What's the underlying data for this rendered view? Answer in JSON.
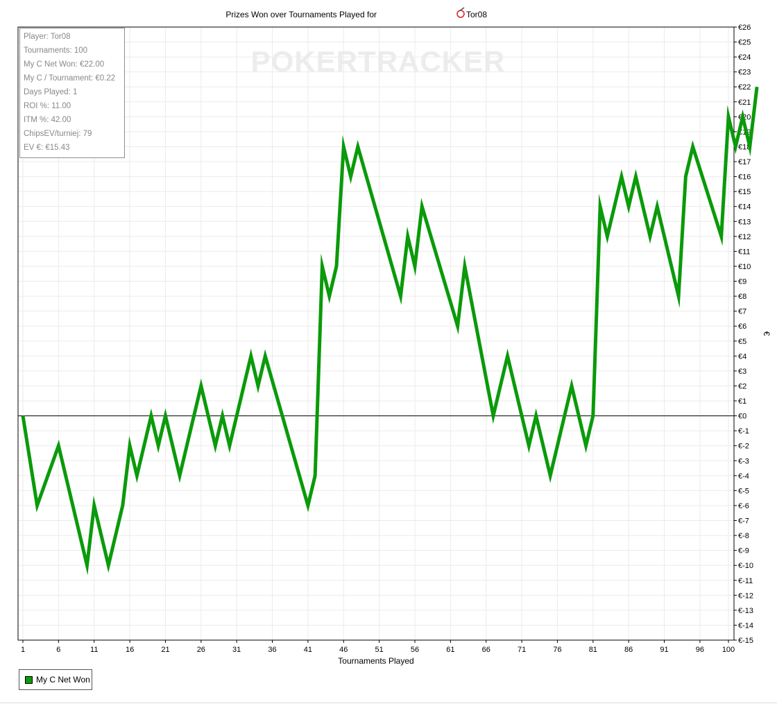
{
  "chart_data": {
    "type": "line",
    "title": "Prizes Won over Tournaments Played for",
    "player": "Tor08",
    "xlabel": "Tournaments Played",
    "ylabel": "€",
    "watermark": "POKERTRACKER",
    "x_ticks": [
      1,
      6,
      11,
      16,
      21,
      26,
      31,
      36,
      41,
      46,
      51,
      56,
      61,
      66,
      71,
      76,
      81,
      86,
      91,
      96,
      100
    ],
    "xlim": [
      0,
      100
    ],
    "ylim": [
      -15,
      26
    ],
    "y_tick_prefix": "€",
    "grid": true,
    "legend_position": "bottom-left",
    "series": [
      {
        "name": "My C Net Won",
        "color": "#0a9a0a",
        "points": [
          [
            1,
            0
          ],
          [
            3,
            -6
          ],
          [
            6,
            -2
          ],
          [
            10,
            -10
          ],
          [
            11,
            -6
          ],
          [
            13,
            -10
          ],
          [
            15,
            -6
          ],
          [
            16,
            -2
          ],
          [
            17,
            -4
          ],
          [
            19,
            0
          ],
          [
            20,
            -2
          ],
          [
            21,
            0
          ],
          [
            23,
            -4
          ],
          [
            26,
            2
          ],
          [
            28,
            -2
          ],
          [
            29,
            0
          ],
          [
            30,
            -2
          ],
          [
            33,
            4
          ],
          [
            34,
            2
          ],
          [
            35,
            4
          ],
          [
            41,
            -6
          ],
          [
            42,
            -4
          ],
          [
            43,
            10
          ],
          [
            44,
            8
          ],
          [
            45,
            10
          ],
          [
            46,
            18
          ],
          [
            47,
            16
          ],
          [
            48,
            18
          ],
          [
            54,
            8
          ],
          [
            55,
            12
          ],
          [
            56,
            10
          ],
          [
            57,
            14
          ],
          [
            62,
            6
          ],
          [
            63,
            10
          ],
          [
            67,
            0
          ],
          [
            69,
            4
          ],
          [
            72,
            -2
          ],
          [
            73,
            0
          ],
          [
            75,
            -4
          ],
          [
            78,
            2
          ],
          [
            80,
            -2
          ],
          [
            81,
            0
          ],
          [
            82,
            14
          ],
          [
            83,
            12
          ],
          [
            85,
            16
          ],
          [
            86,
            14
          ],
          [
            87,
            16
          ],
          [
            89,
            12
          ],
          [
            90,
            14
          ],
          [
            93,
            8
          ],
          [
            94,
            16
          ],
          [
            95,
            18
          ],
          [
            99,
            12
          ],
          [
            100,
            20
          ],
          [
            101,
            18
          ],
          [
            102,
            20
          ],
          [
            103,
            18
          ],
          [
            104,
            22
          ]
        ]
      }
    ]
  },
  "stats": [
    "Player: Tor08",
    "Tournaments: 100",
    "My C Net Won: €22.00",
    "My C / Tournament: €0.22",
    "Days Played: 1",
    "ROI %: 11.00",
    "ITM %: 42.00",
    "ChipsEV/turniej: 79",
    "EV €: €15.43"
  ],
  "legend": {
    "label": "My C Net Won",
    "color": "#0a9a0a"
  }
}
